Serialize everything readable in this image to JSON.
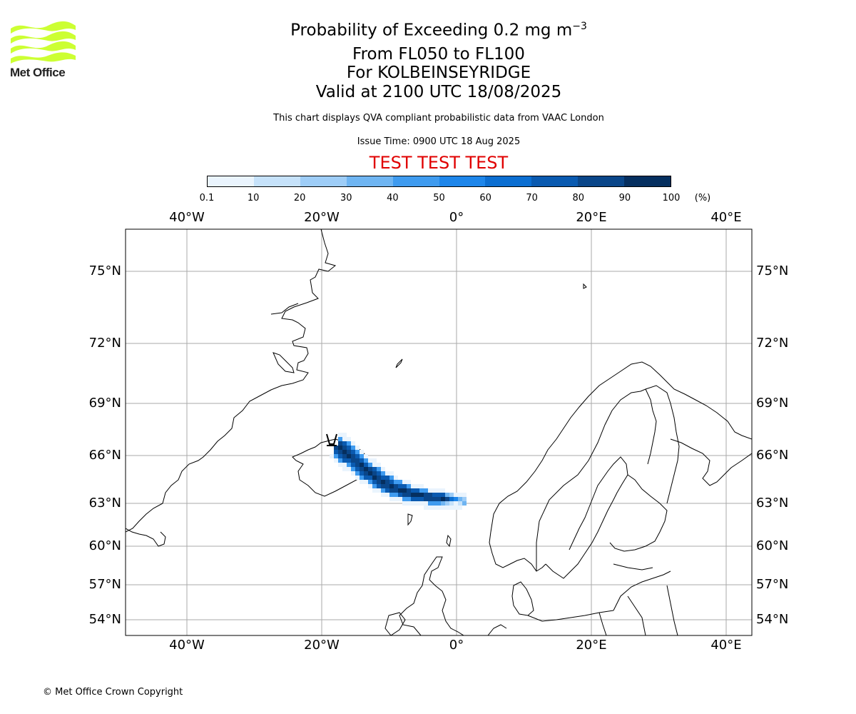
{
  "header": {
    "title": "Probability of Exceeding 0.2 mg m",
    "title_sup": "−3",
    "levels": "From FL050 to FL100",
    "location": "For KOLBEINSEYRIDGE",
    "valid": "Valid at 2100 UTC 18/08/2025",
    "disclaimer": "This chart displays QVA compliant probabilistic data from VAAC London",
    "issue": "Issue Time: 0900 UTC 18 Aug 2025",
    "test_banner": "TEST TEST TEST"
  },
  "logo": {
    "text": "Met Office",
    "color": "#ccff33"
  },
  "colorbar": {
    "ticks": [
      "0.1",
      "10",
      "20",
      "30",
      "40",
      "50",
      "60",
      "70",
      "80",
      "90",
      "100"
    ],
    "unit": "(%)",
    "colors": [
      "#eaf4fd",
      "#c6e2fa",
      "#9ecdf7",
      "#6fb5f2",
      "#3f9bef",
      "#1e86ea",
      "#0b6ed1",
      "#0a5ab0",
      "#0a4689",
      "#052f5f"
    ]
  },
  "map": {
    "lon_labels": [
      "40°W",
      "20°W",
      "0°",
      "20°E",
      "40°E"
    ],
    "lat_labels": [
      "75°N",
      "72°N",
      "69°N",
      "66°N",
      "63°N",
      "60°N",
      "57°N",
      "54°N"
    ],
    "grid_color": "#aaaaaa"
  },
  "footer": {
    "copyright": "© Met Office Crown Copyright"
  }
}
